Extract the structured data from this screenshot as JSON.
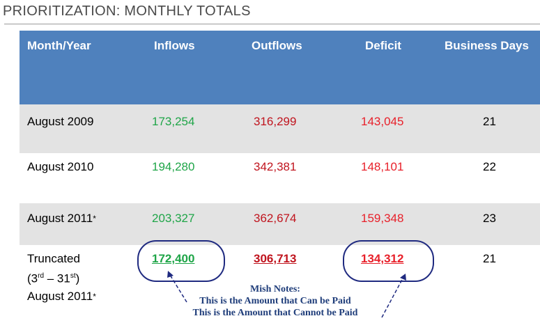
{
  "title": "PRIORITIZATION: MONTHLY TOTALS",
  "headers": {
    "month": "Month/Year",
    "inflows": "Inflows",
    "outflows": "Outflows",
    "deficit": "Deficit",
    "days": "Business Days"
  },
  "rows": [
    {
      "month": "August 2009",
      "inflows": "173,254",
      "outflows": "316,299",
      "deficit": "143,045",
      "days": "21"
    },
    {
      "month": "August 2010",
      "inflows": "194,280",
      "outflows": "342,381",
      "deficit": "148,101",
      "days": "22"
    },
    {
      "month": "August 2011",
      "month_mark": "*",
      "inflows": "203,327",
      "outflows": "362,674",
      "deficit": "159,348",
      "days": "23"
    },
    {
      "month_line1": "Truncated",
      "month_line2_open": "(3",
      "month_line2_sup1": "rd",
      "month_line2_mid": " – 31",
      "month_line2_sup2": "st",
      "month_line2_close": ")",
      "month_line3": "August 2011",
      "month_mark": "*",
      "inflows": "172,400",
      "outflows": "306,713",
      "deficit": "134,312",
      "days": "21"
    }
  ],
  "notes": {
    "title": "Mish Notes:",
    "line1": "This is the Amount that Can be Paid",
    "line2": "This is the Amount that Cannot be Paid"
  },
  "colors": {
    "header_bg": "#4f81bd",
    "inflow_green": "#1fa548",
    "outflow_red": "#c0141e",
    "deficit_red": "#e8202a",
    "annotation_navy": "#1f2a80"
  }
}
